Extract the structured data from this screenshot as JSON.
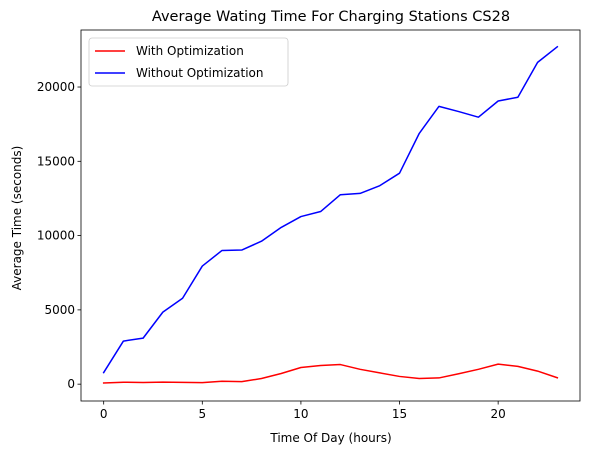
{
  "chart_data": {
    "type": "line",
    "title": "Average Wating Time For Charging Stations CS28",
    "xlabel": "Time Of Day (hours)",
    "ylabel": "Average Time (seconds)",
    "x": [
      0,
      1,
      2,
      3,
      4,
      5,
      6,
      7,
      8,
      9,
      10,
      11,
      12,
      13,
      14,
      15,
      16,
      17,
      18,
      19,
      20,
      21,
      22,
      23
    ],
    "xlim": [
      -1.15,
      24.15
    ],
    "ylim": [
      -1133,
      23838
    ],
    "xticks": [
      0,
      5,
      10,
      15,
      20
    ],
    "yticks": [
      0,
      5000,
      10000,
      15000,
      20000
    ],
    "grid": false,
    "legend_position": "upper-left",
    "series": [
      {
        "name": "With Optimization",
        "color": "#ff0000",
        "values": [
          80,
          130,
          110,
          140,
          120,
          100,
          200,
          170,
          380,
          720,
          1120,
          1260,
          1320,
          1000,
          760,
          520,
          380,
          420,
          700,
          1000,
          1350,
          1200,
          880,
          430
        ]
      },
      {
        "name": "Without Optimization",
        "color": "#0000ff",
        "values": [
          780,
          2900,
          3100,
          4850,
          5780,
          7950,
          9000,
          9030,
          9620,
          10550,
          11280,
          11620,
          12750,
          12840,
          13360,
          14200,
          16880,
          18700,
          18350,
          17970,
          19060,
          19310,
          21660,
          22710
        ]
      }
    ]
  }
}
